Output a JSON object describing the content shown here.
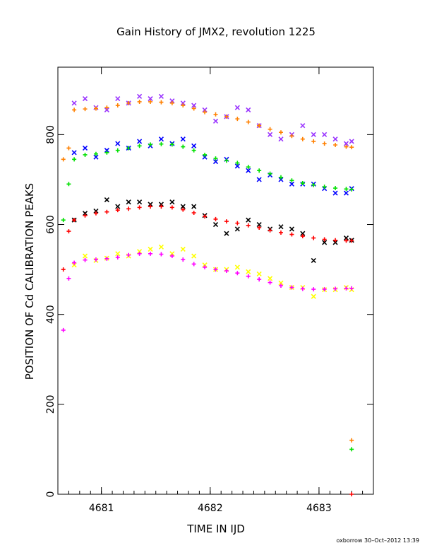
{
  "chart_data": {
    "type": "scatter",
    "title": "Gain History of JMX2, revolution 1225",
    "xlabel": "TIME IN IJD",
    "ylabel": "POSITION OF Cd CALIBRATION PEAKS",
    "xlim": [
      4680.6,
      4683.5
    ],
    "ylim": [
      0,
      950
    ],
    "xticks": [
      4681,
      4682,
      4683
    ],
    "yticks": [
      0,
      200,
      400,
      600,
      800
    ],
    "grid": false,
    "series": [
      {
        "color": "#9933ff",
        "marker": "x",
        "x": [
          4680.75,
          4680.85,
          4680.95,
          4681.05,
          4681.15,
          4681.25,
          4681.35,
          4681.45,
          4681.55,
          4681.65,
          4681.75,
          4681.85,
          4681.95,
          4682.05,
          4682.15,
          4682.25,
          4682.35,
          4682.45,
          4682.55,
          4682.65,
          4682.75,
          4682.85,
          4682.95,
          4683.05,
          4683.15,
          4683.25,
          4683.3
        ],
        "y": [
          870,
          880,
          860,
          855,
          880,
          870,
          885,
          880,
          885,
          875,
          870,
          865,
          855,
          830,
          840,
          860,
          855,
          820,
          800,
          790,
          800,
          820,
          800,
          800,
          790,
          780,
          785
        ]
      },
      {
        "color": "#ff8000",
        "marker": "+",
        "x": [
          4680.65,
          4680.7,
          4680.75,
          4680.85,
          4680.95,
          4681.05,
          4681.15,
          4681.25,
          4681.35,
          4681.45,
          4681.55,
          4681.65,
          4681.75,
          4681.85,
          4681.95,
          4682.05,
          4682.15,
          4682.25,
          4682.35,
          4682.45,
          4682.55,
          4682.65,
          4682.75,
          4682.85,
          4682.95,
          4683.05,
          4683.15,
          4683.25,
          4683.3
        ],
        "y": [
          745,
          770,
          855,
          857,
          858,
          860,
          865,
          870,
          873,
          873,
          872,
          870,
          865,
          858,
          850,
          845,
          840,
          835,
          828,
          820,
          812,
          805,
          797,
          790,
          785,
          780,
          777,
          773,
          772
        ]
      },
      {
        "color": "#0000ff",
        "marker": "x",
        "x": [
          4680.75,
          4680.85,
          4680.95,
          4681.05,
          4681.15,
          4681.25,
          4681.35,
          4681.45,
          4681.55,
          4681.65,
          4681.75,
          4681.85,
          4681.95,
          4682.05,
          4682.15,
          4682.25,
          4682.35,
          4682.45,
          4682.55,
          4682.65,
          4682.75,
          4682.85,
          4682.95,
          4683.05,
          4683.15,
          4683.25,
          4683.3
        ],
        "y": [
          760,
          770,
          750,
          765,
          780,
          770,
          785,
          775,
          790,
          780,
          790,
          775,
          750,
          740,
          745,
          730,
          720,
          700,
          710,
          700,
          690,
          690,
          690,
          680,
          670,
          670,
          680
        ]
      },
      {
        "color": "#00e000",
        "marker": "+",
        "x": [
          4680.65,
          4680.7,
          4680.75,
          4680.85,
          4680.95,
          4681.05,
          4681.15,
          4681.25,
          4681.35,
          4681.45,
          4681.55,
          4681.65,
          4681.75,
          4681.85,
          4681.95,
          4682.05,
          4682.15,
          4682.25,
          4682.35,
          4682.45,
          4682.55,
          4682.65,
          4682.75,
          4682.85,
          4682.95,
          4683.05,
          4683.15,
          4683.25,
          4683.3
        ],
        "y": [
          610,
          690,
          745,
          755,
          757,
          760,
          765,
          770,
          775,
          778,
          779,
          778,
          773,
          765,
          755,
          747,
          742,
          737,
          728,
          720,
          713,
          705,
          698,
          692,
          688,
          684,
          681,
          679,
          678
        ]
      },
      {
        "color": "#000000",
        "marker": "x",
        "x": [
          4680.75,
          4680.85,
          4680.95,
          4681.05,
          4681.15,
          4681.25,
          4681.35,
          4681.45,
          4681.55,
          4681.65,
          4681.75,
          4681.85,
          4681.95,
          4682.05,
          4682.15,
          4682.25,
          4682.35,
          4682.45,
          4682.55,
          4682.65,
          4682.75,
          4682.85,
          4682.95,
          4683.05,
          4683.15,
          4683.25,
          4683.3
        ],
        "y": [
          610,
          625,
          630,
          655,
          640,
          650,
          650,
          645,
          645,
          650,
          640,
          640,
          620,
          600,
          580,
          590,
          610,
          600,
          590,
          595,
          590,
          580,
          520,
          560,
          560,
          570,
          565
        ]
      },
      {
        "color": "#ff0000",
        "marker": "+",
        "x": [
          4680.65,
          4680.7,
          4680.75,
          4680.85,
          4680.95,
          4681.05,
          4681.15,
          4681.25,
          4681.35,
          4681.45,
          4681.55,
          4681.65,
          4681.75,
          4681.85,
          4681.95,
          4682.05,
          4682.15,
          4682.25,
          4682.35,
          4682.45,
          4682.55,
          4682.65,
          4682.75,
          4682.85,
          4682.95,
          4683.05,
          4683.15,
          4683.25,
          4683.3
        ],
        "y": [
          500,
          585,
          610,
          620,
          625,
          628,
          632,
          635,
          638,
          640,
          640,
          638,
          633,
          626,
          618,
          612,
          607,
          603,
          598,
          593,
          587,
          582,
          578,
          574,
          570,
          567,
          565,
          564,
          564
        ]
      },
      {
        "color": "#ffff00",
        "marker": "x",
        "x": [
          4680.75,
          4680.85,
          4680.95,
          4681.05,
          4681.15,
          4681.25,
          4681.35,
          4681.45,
          4681.55,
          4681.65,
          4681.75,
          4681.85,
          4681.95,
          4682.05,
          4682.15,
          4682.25,
          4682.35,
          4682.45,
          4682.55,
          4682.65,
          4682.75,
          4682.85,
          4682.95,
          4683.05,
          4683.15,
          4683.25,
          4683.3
        ],
        "y": [
          510,
          530,
          520,
          525,
          535,
          530,
          540,
          545,
          550,
          535,
          545,
          530,
          510,
          500,
          500,
          505,
          495,
          490,
          480,
          470,
          460,
          460,
          440,
          455,
          455,
          460,
          455
        ]
      },
      {
        "color": "#ff00ff",
        "marker": "+",
        "x": [
          4680.65,
          4680.7,
          4680.75,
          4680.85,
          4680.95,
          4681.05,
          4681.15,
          4681.25,
          4681.35,
          4681.45,
          4681.55,
          4681.65,
          4681.75,
          4681.85,
          4681.95,
          4682.05,
          4682.15,
          4682.25,
          4682.35,
          4682.45,
          4682.55,
          4682.65,
          4682.75,
          4682.85,
          4682.95,
          4683.05,
          4683.15,
          4683.25,
          4683.3
        ],
        "y": [
          365,
          480,
          515,
          521,
          522,
          524,
          527,
          532,
          535,
          535,
          534,
          530,
          522,
          512,
          505,
          500,
          497,
          492,
          485,
          478,
          471,
          464,
          460,
          457,
          456,
          456,
          457,
          458,
          458
        ]
      }
    ],
    "extra_points": [
      {
        "color": "#ff8000",
        "marker": "+",
        "x": 4683.3,
        "y": 120
      },
      {
        "color": "#00e000",
        "marker": "+",
        "x": 4683.3,
        "y": 100
      },
      {
        "color": "#ff0000",
        "marker": "+",
        "x": 4683.3,
        "y": 0
      }
    ]
  },
  "footer": {
    "text": "oxborrow 30–Oct–2012 13:39"
  }
}
